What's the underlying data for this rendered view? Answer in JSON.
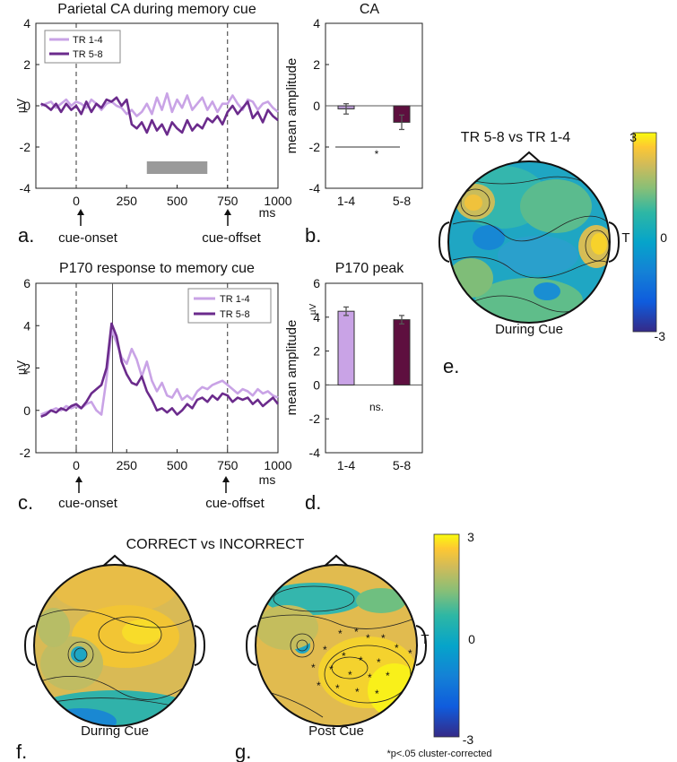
{
  "colors": {
    "light": "#c9a3e6",
    "dark": "#6b2b8c",
    "darkbar": "#5e0f3f",
    "gray": "#9a9a9a"
  },
  "chart_data": [
    {
      "id": "a",
      "type": "line",
      "title": "Parietal CA during memory cue",
      "ylabel": "µV",
      "xunit": "ms",
      "xlim": [
        -200,
        1000
      ],
      "ylim": [
        -4,
        4
      ],
      "xticks": [
        0,
        250,
        500,
        750,
        1000
      ],
      "yticks": [
        4,
        2,
        0,
        -2,
        -4
      ],
      "vlines": [
        0,
        750
      ],
      "sig_bar": {
        "from": 350,
        "to": 650,
        "y": -3
      },
      "annotations": [
        {
          "text": "cue-onset",
          "x": 0
        },
        {
          "text": "cue-offset",
          "x": 750
        }
      ],
      "panel_label": "a.",
      "series": [
        {
          "name": "TR 1-4",
          "color": "#c9a3e6",
          "x": [
            -175,
            -150,
            -125,
            -100,
            -75,
            -50,
            -25,
            0,
            25,
            50,
            75,
            100,
            125,
            150,
            175,
            200,
            225,
            250,
            275,
            300,
            325,
            350,
            375,
            400,
            425,
            450,
            475,
            500,
            525,
            550,
            575,
            600,
            625,
            650,
            675,
            700,
            725,
            750,
            775,
            800,
            825,
            850,
            875,
            900,
            925,
            950,
            975,
            1000
          ],
          "y": [
            0,
            0.1,
            0.2,
            -0.1,
            0.1,
            0.3,
            0,
            0.2,
            0.1,
            -0.1,
            0.3,
            0.1,
            -0.2,
            0.1,
            0.2,
            0,
            -0.1,
            -0.4,
            -0.2,
            -0.5,
            -0.3,
            0.1,
            -0.4,
            0.4,
            -0.2,
            0.6,
            -0.3,
            0.3,
            -0.1,
            0.5,
            -0.2,
            0.1,
            0.4,
            -0.2,
            0.2,
            -0.3,
            0.1,
            0.1,
            0.5,
            0.1,
            -0.2,
            0.3,
            0.2,
            -0.2,
            0.1,
            0.2,
            -0.1,
            -0.3
          ]
        },
        {
          "name": "TR 5-8",
          "color": "#6b2b8c",
          "x": [
            -175,
            -150,
            -125,
            -100,
            -75,
            -50,
            -25,
            0,
            25,
            50,
            75,
            100,
            125,
            150,
            175,
            200,
            225,
            250,
            275,
            300,
            325,
            350,
            375,
            400,
            425,
            450,
            475,
            500,
            525,
            550,
            575,
            600,
            625,
            650,
            675,
            700,
            725,
            750,
            775,
            800,
            825,
            850,
            875,
            900,
            925,
            950,
            975,
            1000
          ],
          "y": [
            0.1,
            0,
            -0.2,
            0.1,
            -0.3,
            0.1,
            -0.2,
            0,
            -0.4,
            0.2,
            -0.3,
            0.1,
            -0.1,
            0.3,
            0.2,
            0.4,
            0,
            0.3,
            -0.9,
            -1.1,
            -0.8,
            -1.3,
            -0.7,
            -1.2,
            -0.9,
            -1.4,
            -0.8,
            -1.1,
            -1.3,
            -0.7,
            -1.2,
            -0.9,
            -1.1,
            -0.6,
            -0.8,
            -0.5,
            -0.9,
            -0.3,
            0,
            -0.4,
            -0.1,
            0.2,
            -0.6,
            -0.3,
            -0.8,
            -0.2,
            -0.5,
            -0.7
          ]
        }
      ]
    },
    {
      "id": "b",
      "type": "bar",
      "title": "CA",
      "ylabel": "mean amplitude",
      "categories": [
        "1-4",
        "5-8"
      ],
      "values": [
        -0.15,
        -0.8
      ],
      "errors": [
        0.25,
        0.35
      ],
      "ylim": [
        -4,
        4
      ],
      "yticks": [
        4,
        2,
        0,
        -2,
        -4
      ],
      "significance": "*",
      "panel_label": "b."
    },
    {
      "id": "c",
      "type": "line",
      "title": "P170 response to memory cue",
      "ylabel": "µV",
      "xunit": "ms",
      "xlim": [
        -200,
        1000
      ],
      "ylim": [
        -2,
        6
      ],
      "xticks": [
        0,
        250,
        500,
        750,
        1000
      ],
      "yticks": [
        6,
        4,
        2,
        0,
        -2
      ],
      "vlines": [
        0,
        750
      ],
      "peak_line": 180,
      "annotations": [
        {
          "text": "cue-onset",
          "x": 0
        },
        {
          "text": "cue-offset",
          "x": 750
        }
      ],
      "panel_label": "c.",
      "series": [
        {
          "name": "TR 1-4",
          "color": "#c9a3e6",
          "x": [
            -175,
            -150,
            -125,
            -100,
            -75,
            -50,
            -25,
            0,
            25,
            50,
            75,
            100,
            125,
            150,
            175,
            200,
            225,
            250,
            275,
            300,
            325,
            350,
            375,
            400,
            425,
            450,
            475,
            500,
            525,
            550,
            575,
            600,
            625,
            650,
            675,
            700,
            725,
            750,
            775,
            800,
            825,
            850,
            875,
            900,
            925,
            950,
            975,
            1000
          ],
          "y": [
            -0.2,
            -0.1,
            0,
            0.1,
            0,
            0.2,
            0.1,
            0.2,
            0.1,
            0.3,
            0.4,
            0,
            -0.2,
            1.5,
            3.8,
            3.2,
            2.5,
            2.2,
            2.9,
            2.4,
            1.6,
            2.3,
            1.4,
            0.9,
            1.3,
            0.7,
            0.6,
            1,
            0.5,
            0.7,
            0.5,
            0.9,
            1.1,
            1,
            1.2,
            1.3,
            1.4,
            1.2,
            1,
            0.8,
            1,
            0.9,
            0.7,
            1,
            0.8,
            0.9,
            0.7,
            0.6
          ]
        },
        {
          "name": "TR 5-8",
          "color": "#6b2b8c",
          "x": [
            -175,
            -150,
            -125,
            -100,
            -75,
            -50,
            -25,
            0,
            25,
            50,
            75,
            100,
            125,
            150,
            175,
            200,
            225,
            250,
            275,
            300,
            325,
            350,
            375,
            400,
            425,
            450,
            475,
            500,
            525,
            550,
            575,
            600,
            625,
            650,
            675,
            700,
            725,
            750,
            775,
            800,
            825,
            850,
            875,
            900,
            925,
            950,
            975,
            1000
          ],
          "y": [
            -0.3,
            -0.2,
            0,
            -0.1,
            0.1,
            0,
            0.2,
            0.3,
            0.1,
            0.4,
            0.8,
            1,
            1.2,
            2,
            4.1,
            3.5,
            2.3,
            1.7,
            1.3,
            1.2,
            1.6,
            0.9,
            0.5,
            0,
            0.1,
            -0.1,
            0.1,
            -0.2,
            0,
            0.3,
            0.1,
            0.5,
            0.6,
            0.4,
            0.7,
            0.5,
            0.8,
            0.7,
            0.4,
            0.6,
            0.5,
            0.6,
            0.3,
            0.5,
            0.2,
            0.4,
            0.6,
            0.3
          ]
        }
      ]
    },
    {
      "id": "d",
      "type": "bar",
      "title": "P170 peak",
      "ylabel": "mean amplitude",
      "categories": [
        "1-4",
        "5-8"
      ],
      "values": [
        4.35,
        3.85
      ],
      "errors": [
        0.25,
        0.25
      ],
      "ylim": [
        -4,
        6
      ],
      "yticks": [
        6,
        4,
        2,
        0,
        -2,
        -4
      ],
      "significance": "ns.",
      "panel_label": "d."
    },
    {
      "id": "e",
      "type": "heatmap",
      "title": "TR 5-8 vs TR 1-4",
      "maps": [
        {
          "label": "During Cue"
        }
      ],
      "colorbar": {
        "max": "3",
        "mid": "0",
        "min": "-3",
        "label": "T"
      },
      "panel_label": "e."
    },
    {
      "id": "fg",
      "type": "heatmap",
      "title": "CORRECT vs INCORRECT",
      "maps": [
        {
          "label": "During Cue",
          "panel_label": "f."
        },
        {
          "label": "Post Cue",
          "panel_label": "g."
        }
      ],
      "colorbar": {
        "max": "3",
        "mid": "0",
        "min": "-3",
        "label": "T"
      },
      "footnote": "*p<.05 cluster-corrected"
    }
  ]
}
